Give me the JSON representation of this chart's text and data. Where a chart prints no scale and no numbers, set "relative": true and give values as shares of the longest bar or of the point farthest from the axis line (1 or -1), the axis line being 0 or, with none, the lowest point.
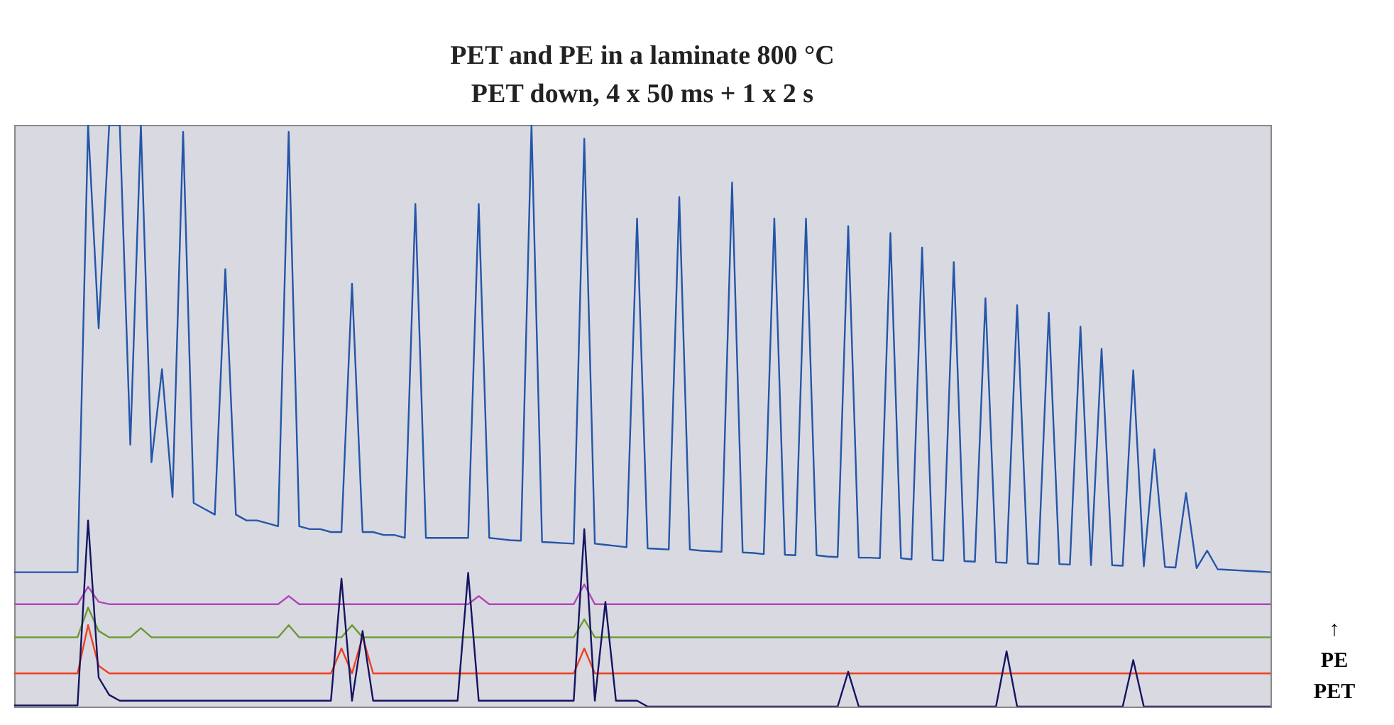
{
  "chart_data": {
    "type": "line",
    "title": "PET and PE in a laminate 800 °C",
    "subtitle": "PET down, 4 x 50 ms + 1 x 2 s",
    "relative": true,
    "annotations": [
      "↑",
      "PE",
      "PET"
    ],
    "categories": [
      null,
      null,
      null,
      null,
      null,
      null,
      null,
      null,
      null,
      null,
      null,
      null,
      null,
      null,
      null,
      null,
      null,
      null,
      null,
      null,
      null,
      null,
      null,
      null,
      null,
      null,
      null,
      null,
      null,
      null,
      null,
      null,
      null,
      null,
      null,
      null,
      null,
      null,
      null,
      null,
      null,
      null,
      null,
      null,
      null,
      null,
      null,
      null,
      null,
      null,
      null,
      null,
      null,
      null,
      null,
      null,
      null,
      null,
      null,
      null,
      null,
      null,
      null,
      null,
      null,
      null,
      null,
      null,
      null,
      null,
      null,
      null,
      null,
      null,
      null,
      null,
      null,
      null,
      null,
      null,
      null,
      null,
      null,
      null,
      null,
      null,
      null,
      null,
      null,
      null,
      null,
      null,
      null,
      null,
      null,
      null,
      null,
      null,
      null,
      null,
      null,
      null,
      null,
      null,
      null,
      null,
      null,
      null,
      null,
      null,
      null,
      null,
      null,
      null,
      null,
      null,
      null,
      null,
      null,
      null
    ],
    "series": [
      {
        "color": "#2456a8",
        "values": [
          0.231,
          0.231,
          0.231,
          0.231,
          0.231,
          0.231,
          0.231,
          1.0,
          0.65,
          1.0,
          1.0,
          0.45,
          1.0,
          0.42,
          0.58,
          0.36,
          0.988,
          0.35,
          0.34,
          0.33,
          0.752,
          0.33,
          0.32,
          0.32,
          0.315,
          0.31,
          0.988,
          0.31,
          0.305,
          0.305,
          0.3,
          0.3,
          0.727,
          0.3,
          0.3,
          0.295,
          0.295,
          0.29,
          0.864,
          0.29,
          0.29,
          0.29,
          0.29,
          0.29,
          0.864,
          0.29,
          0.288,
          0.286,
          0.285,
          1.0,
          0.283,
          0.282,
          0.281,
          0.28,
          0.976,
          0.28,
          0.278,
          0.276,
          0.274,
          0.839,
          0.272,
          0.271,
          0.27,
          0.876,
          0.27,
          0.268,
          0.267,
          0.266,
          0.901,
          0.265,
          0.264,
          0.262,
          0.839,
          0.261,
          0.26,
          0.839,
          0.26,
          0.258,
          0.257,
          0.826,
          0.256,
          0.256,
          0.255,
          0.814,
          0.255,
          0.253,
          0.789,
          0.252,
          0.251,
          0.764,
          0.25,
          0.249,
          0.702,
          0.248,
          0.247,
          0.69,
          0.246,
          0.245,
          0.677,
          0.245,
          0.244,
          0.653,
          0.243,
          0.615,
          0.243,
          0.242,
          0.578,
          0.241,
          0.442,
          0.24,
          0.239,
          0.367,
          0.238,
          0.268,
          0.236,
          0.235,
          0.234,
          0.233,
          0.232,
          0.231
        ]
      },
      {
        "color": "#b048b8",
        "values": [
          0.176,
          0.176,
          0.176,
          0.176,
          0.176,
          0.176,
          0.176,
          0.206,
          0.18,
          0.176,
          0.176,
          0.176,
          0.176,
          0.176,
          0.176,
          0.176,
          0.176,
          0.176,
          0.176,
          0.176,
          0.176,
          0.176,
          0.176,
          0.176,
          0.176,
          0.176,
          0.19,
          0.176,
          0.176,
          0.176,
          0.176,
          0.176,
          0.176,
          0.176,
          0.176,
          0.176,
          0.176,
          0.176,
          0.176,
          0.176,
          0.176,
          0.176,
          0.176,
          0.176,
          0.19,
          0.176,
          0.176,
          0.176,
          0.176,
          0.176,
          0.176,
          0.176,
          0.176,
          0.176,
          0.21,
          0.176,
          0.176,
          0.176,
          0.176,
          0.176,
          0.176,
          0.176,
          0.176,
          0.176,
          0.176,
          0.176,
          0.176,
          0.176,
          0.176,
          0.176,
          0.176,
          0.176,
          0.176,
          0.176,
          0.176,
          0.176,
          0.176,
          0.176,
          0.176,
          0.176,
          0.176,
          0.176,
          0.176,
          0.176,
          0.176,
          0.176,
          0.176,
          0.176,
          0.176,
          0.176,
          0.176,
          0.176,
          0.176,
          0.176,
          0.176,
          0.176,
          0.176,
          0.176,
          0.176,
          0.176,
          0.176,
          0.176,
          0.176,
          0.176,
          0.176,
          0.176,
          0.176,
          0.176,
          0.176,
          0.176,
          0.176,
          0.176,
          0.176,
          0.176,
          0.176,
          0.176,
          0.176,
          0.176,
          0.176,
          0.176
        ]
      },
      {
        "color": "#6a9a30",
        "values": [
          0.119,
          0.119,
          0.119,
          0.119,
          0.119,
          0.119,
          0.119,
          0.17,
          0.13,
          0.119,
          0.119,
          0.119,
          0.135,
          0.119,
          0.119,
          0.119,
          0.119,
          0.119,
          0.119,
          0.119,
          0.119,
          0.119,
          0.119,
          0.119,
          0.119,
          0.119,
          0.14,
          0.119,
          0.119,
          0.119,
          0.119,
          0.119,
          0.14,
          0.119,
          0.119,
          0.119,
          0.119,
          0.119,
          0.119,
          0.119,
          0.119,
          0.119,
          0.119,
          0.119,
          0.119,
          0.119,
          0.119,
          0.119,
          0.119,
          0.119,
          0.119,
          0.119,
          0.119,
          0.119,
          0.15,
          0.119,
          0.119,
          0.119,
          0.119,
          0.119,
          0.119,
          0.119,
          0.119,
          0.119,
          0.119,
          0.119,
          0.119,
          0.119,
          0.119,
          0.119,
          0.119,
          0.119,
          0.119,
          0.119,
          0.119,
          0.119,
          0.119,
          0.119,
          0.119,
          0.119,
          0.119,
          0.119,
          0.119,
          0.119,
          0.119,
          0.119,
          0.119,
          0.119,
          0.119,
          0.119,
          0.119,
          0.119,
          0.119,
          0.119,
          0.119,
          0.119,
          0.119,
          0.119,
          0.119,
          0.119,
          0.119,
          0.119,
          0.119,
          0.119,
          0.119,
          0.119,
          0.119,
          0.119,
          0.119,
          0.119,
          0.119,
          0.119,
          0.119,
          0.119,
          0.119,
          0.119,
          0.119,
          0.119,
          0.119,
          0.119
        ]
      },
      {
        "color": "#f04020",
        "values": [
          0.057,
          0.057,
          0.057,
          0.057,
          0.057,
          0.057,
          0.057,
          0.14,
          0.07,
          0.057,
          0.057,
          0.057,
          0.057,
          0.057,
          0.057,
          0.057,
          0.057,
          0.057,
          0.057,
          0.057,
          0.057,
          0.057,
          0.057,
          0.057,
          0.057,
          0.057,
          0.057,
          0.057,
          0.057,
          0.057,
          0.057,
          0.1,
          0.057,
          0.12,
          0.057,
          0.057,
          0.057,
          0.057,
          0.057,
          0.057,
          0.057,
          0.057,
          0.057,
          0.057,
          0.057,
          0.057,
          0.057,
          0.057,
          0.057,
          0.057,
          0.057,
          0.057,
          0.057,
          0.057,
          0.1,
          0.057,
          0.057,
          0.057,
          0.057,
          0.057,
          0.057,
          0.057,
          0.057,
          0.057,
          0.057,
          0.057,
          0.057,
          0.057,
          0.057,
          0.057,
          0.057,
          0.057,
          0.057,
          0.057,
          0.057,
          0.057,
          0.057,
          0.057,
          0.057,
          0.057,
          0.057,
          0.057,
          0.057,
          0.057,
          0.057,
          0.057,
          0.057,
          0.057,
          0.057,
          0.057,
          0.057,
          0.057,
          0.057,
          0.057,
          0.057,
          0.057,
          0.057,
          0.057,
          0.057,
          0.057,
          0.057,
          0.057,
          0.057,
          0.057,
          0.057,
          0.057,
          0.057,
          0.057,
          0.057,
          0.057,
          0.057,
          0.057,
          0.057,
          0.057,
          0.057,
          0.057,
          0.057,
          0.057,
          0.057,
          0.057
        ]
      },
      {
        "color": "#141460",
        "values": [
          0.002,
          0.002,
          0.002,
          0.002,
          0.002,
          0.002,
          0.002,
          0.32,
          0.05,
          0.02,
          0.01,
          0.01,
          0.01,
          0.01,
          0.01,
          0.01,
          0.01,
          0.01,
          0.01,
          0.01,
          0.01,
          0.01,
          0.01,
          0.01,
          0.01,
          0.01,
          0.01,
          0.01,
          0.01,
          0.01,
          0.01,
          0.22,
          0.01,
          0.13,
          0.01,
          0.01,
          0.01,
          0.01,
          0.01,
          0.01,
          0.01,
          0.01,
          0.01,
          0.23,
          0.01,
          0.01,
          0.01,
          0.01,
          0.01,
          0.01,
          0.01,
          0.01,
          0.01,
          0.01,
          0.305,
          0.01,
          0.18,
          0.01,
          0.01,
          0.01,
          0,
          0,
          0,
          0,
          0,
          0,
          0,
          0,
          0,
          0,
          0,
          0,
          0,
          0,
          0,
          0,
          0,
          0,
          0,
          0.06,
          0,
          0,
          0,
          0,
          0,
          0,
          0,
          0,
          0,
          0,
          0,
          0,
          0,
          0,
          0.095,
          0,
          0,
          0,
          0,
          0,
          0,
          0,
          0,
          0,
          0,
          0,
          0.08,
          0,
          0,
          0,
          0,
          0,
          0,
          0,
          0,
          0,
          0,
          0,
          0,
          0
        ]
      }
    ]
  }
}
